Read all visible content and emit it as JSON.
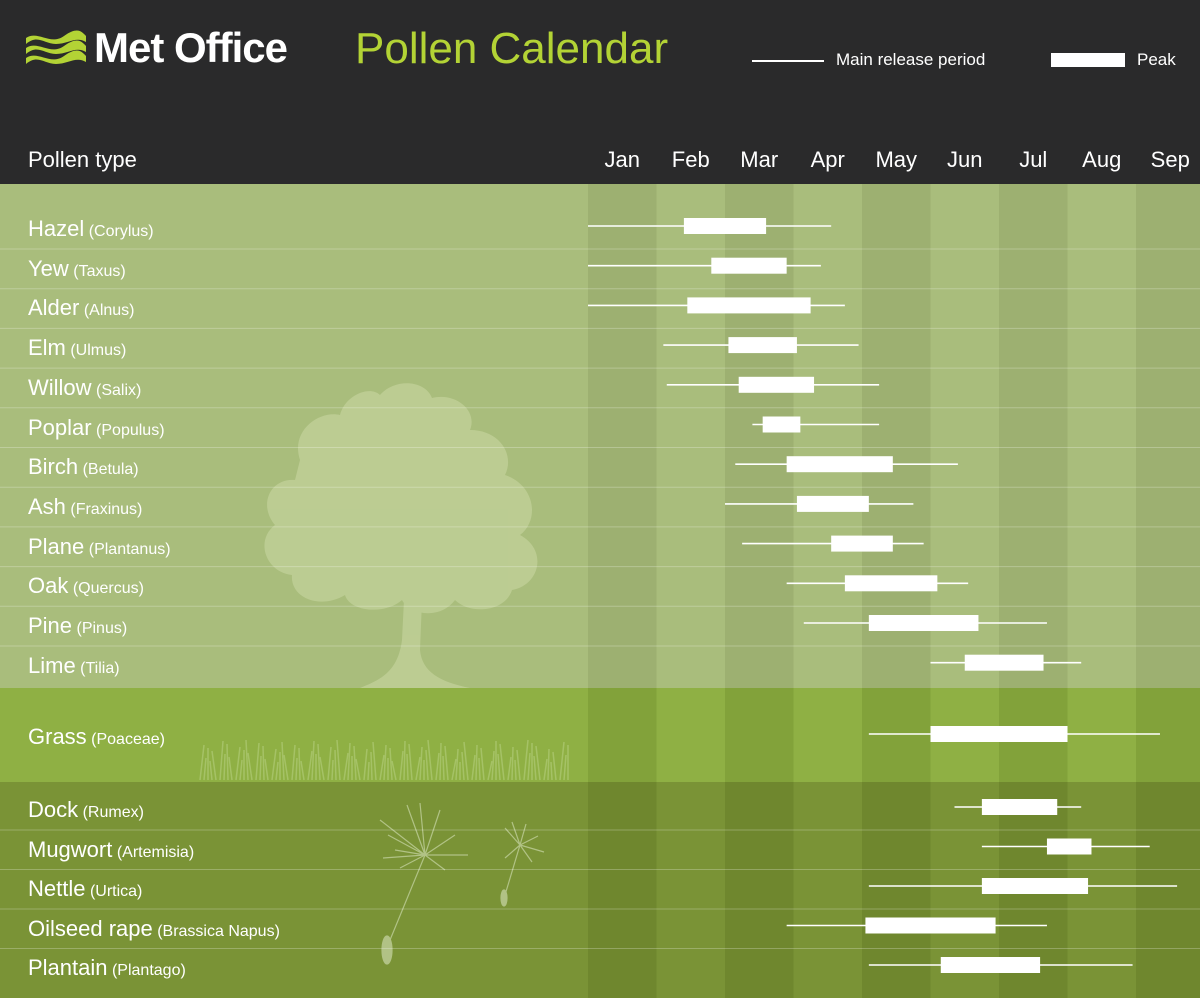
{
  "brand": {
    "name": "Met Office"
  },
  "title": "Pollen Calendar",
  "legend": {
    "line_label": "Main release period",
    "peak_label": "Peak"
  },
  "column_header": "Pollen type",
  "colors": {
    "header_bg": "#2a2a2b",
    "title_accent": "#b3d335",
    "trees_light": "#a9bd7c",
    "trees_dark": "#9db071",
    "grass_light": "#8fb044",
    "grass_dark": "#82a23a",
    "weeds_light": "#7a9336",
    "weeds_dark": "#6f872e",
    "bars": "#ffffff"
  },
  "chart_data": {
    "type": "gantt",
    "x_unit": "month",
    "months": [
      "Jan",
      "Feb",
      "Mar",
      "Apr",
      "May",
      "Jun",
      "Jul",
      "Aug",
      "Sep"
    ],
    "groups": [
      {
        "name": "",
        "items": [
          {
            "common": "Hazel",
            "latin": "Corylus",
            "release": [
              0.0,
              3.55
            ],
            "peak": [
              1.4,
              2.6
            ]
          },
          {
            "common": "Yew",
            "latin": "Taxus",
            "release": [
              0.0,
              3.4
            ],
            "peak": [
              1.8,
              2.9
            ]
          },
          {
            "common": "Alder",
            "latin": "Alnus",
            "release": [
              0.0,
              3.75
            ],
            "peak": [
              1.45,
              3.25
            ]
          },
          {
            "common": "Elm",
            "latin": "Ulmus",
            "release": [
              1.1,
              3.95
            ],
            "peak": [
              2.05,
              3.05
            ]
          },
          {
            "common": "Willow",
            "latin": "Salix",
            "release": [
              1.15,
              4.25
            ],
            "peak": [
              2.2,
              3.3
            ]
          },
          {
            "common": "Poplar",
            "latin": "Populus",
            "release": [
              2.4,
              4.25
            ],
            "peak": [
              2.55,
              3.1
            ]
          },
          {
            "common": "Birch",
            "latin": "Betula",
            "release": [
              2.15,
              5.4
            ],
            "peak": [
              2.9,
              4.45
            ]
          },
          {
            "common": "Ash",
            "latin": "Fraxinus",
            "release": [
              2.0,
              4.75
            ],
            "peak": [
              3.05,
              4.1
            ]
          },
          {
            "common": "Plane",
            "latin": "Plantanus",
            "release": [
              2.25,
              4.9
            ],
            "peak": [
              3.55,
              4.45
            ]
          },
          {
            "common": "Oak",
            "latin": "Quercus",
            "release": [
              2.9,
              5.55
            ],
            "peak": [
              3.75,
              5.1
            ]
          },
          {
            "common": "Pine",
            "latin": "Pinus",
            "release": [
              3.15,
              6.7
            ],
            "peak": [
              4.1,
              5.7
            ]
          },
          {
            "common": "Lime",
            "latin": "Tilia",
            "release": [
              5.0,
              7.2
            ],
            "peak": [
              5.5,
              6.65
            ]
          }
        ]
      },
      {
        "name": "",
        "items": [
          {
            "common": "Grass",
            "latin": "Poaceae",
            "release": [
              4.1,
              8.35
            ],
            "peak": [
              5.0,
              7.0
            ]
          }
        ]
      },
      {
        "name": "",
        "items": [
          {
            "common": "Dock",
            "latin": "Rumex",
            "release": [
              5.35,
              7.2
            ],
            "peak": [
              5.75,
              6.85
            ]
          },
          {
            "common": "Mugwort",
            "latin": "Artemisia",
            "release": [
              5.75,
              8.2
            ],
            "peak": [
              6.7,
              7.35
            ]
          },
          {
            "common": "Nettle",
            "latin": "Urtica",
            "release": [
              4.1,
              8.6
            ],
            "peak": [
              5.75,
              7.3
            ]
          },
          {
            "common": "Oilseed rape",
            "latin": "Brassica Napus",
            "release": [
              2.9,
              6.7
            ],
            "peak": [
              4.05,
              5.95
            ]
          },
          {
            "common": "Plantain",
            "latin": "Plantago",
            "release": [
              4.1,
              7.95
            ],
            "peak": [
              5.15,
              6.6
            ]
          }
        ]
      }
    ]
  }
}
